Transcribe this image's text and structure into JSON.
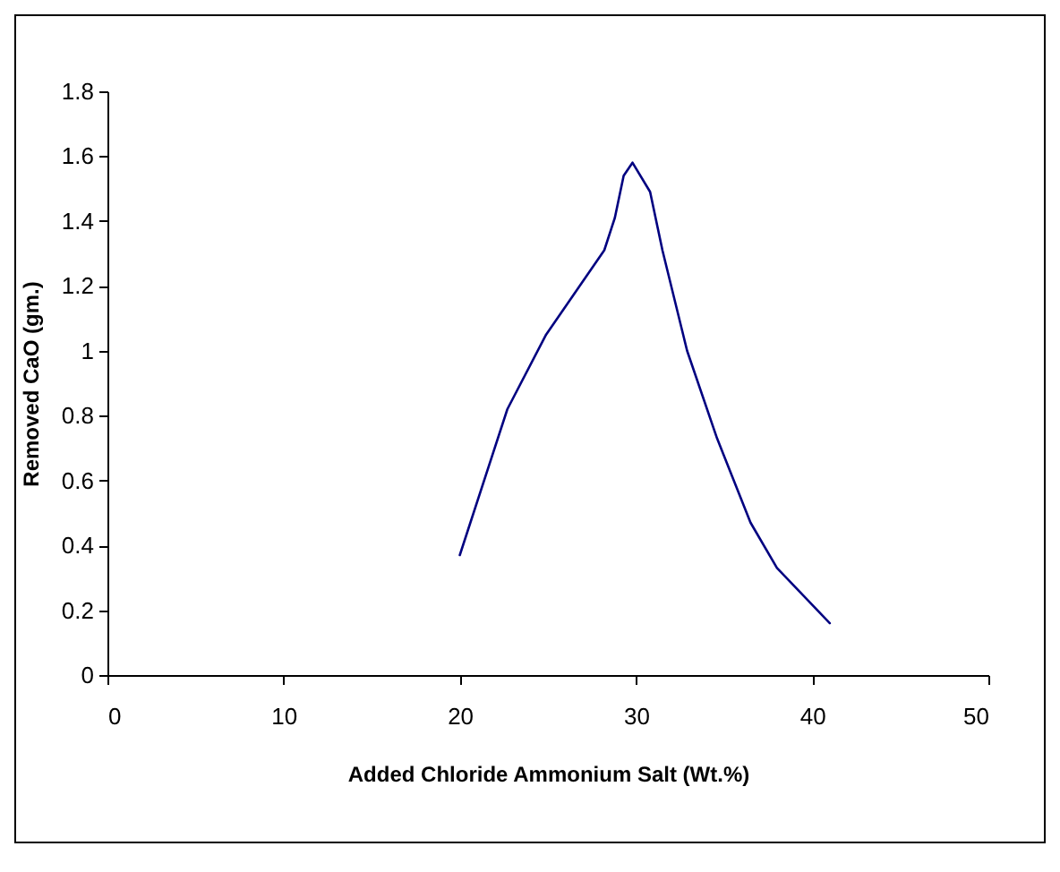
{
  "chart_data": {
    "type": "line",
    "xlabel": "Added Chloride Ammonium Salt (Wt.%)",
    "ylabel": "Removed CaO (gm.)",
    "x": [
      20.0,
      22.7,
      24.9,
      28.2,
      28.8,
      29.3,
      29.8,
      30.8,
      31.5,
      32.9,
      34.6,
      36.5,
      38.0,
      41.0
    ],
    "series": [
      {
        "color": "#000080",
        "values": [
          0.37,
          0.82,
          1.05,
          1.31,
          1.41,
          1.54,
          1.58,
          1.49,
          1.31,
          1.0,
          0.73,
          0.47,
          0.33,
          0.16
        ]
      }
    ],
    "xlim": [
      0,
      50
    ],
    "xticks": [
      0,
      10,
      20,
      30,
      40,
      50
    ],
    "ylim": [
      0,
      1.8
    ],
    "yticks": [
      0,
      0.2,
      0.4,
      0.6,
      0.8,
      1,
      1.2,
      1.4,
      1.6,
      1.8
    ],
    "grid": false,
    "marker": "none",
    "line_style": "solid"
  }
}
